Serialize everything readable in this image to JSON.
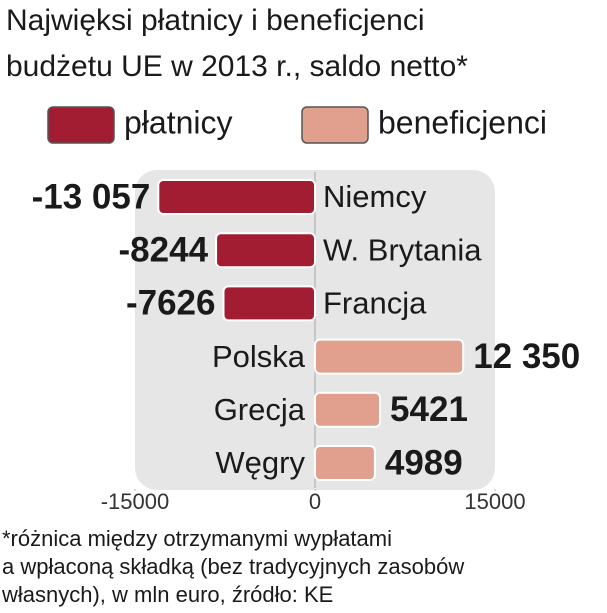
{
  "chart_data": {
    "type": "bar",
    "orientation": "horizontal",
    "title": [
      "Najwięksi płatnicy i beneficjenci",
      "budżetu UE w 2013 r., saldo netto*"
    ],
    "categories": [
      "Niemcy",
      "W. Brytania",
      "Francja",
      "Polska",
      "Grecja",
      "Węgry"
    ],
    "series": [
      {
        "name": "płatnicy",
        "color": "#a31d32",
        "values": [
          -13057,
          -8244,
          -7626,
          null,
          null,
          null
        ],
        "value_labels": [
          "-13 057",
          "-8244",
          "-7626",
          null,
          null,
          null
        ]
      },
      {
        "name": "beneficjenci",
        "color": "#e0a08d",
        "values": [
          null,
          null,
          null,
          12350,
          5421,
          4989
        ],
        "value_labels": [
          null,
          null,
          null,
          "12 350",
          "5421",
          "4989"
        ]
      }
    ],
    "xlim": [
      -15000,
      15000
    ],
    "xticks": [
      -15000,
      0,
      15000
    ],
    "footnote": [
      "*różnica między otrzymanymi wypłatami",
      "a wpłaconą składką (bez tradycyjnych zasobów",
      "własnych), w mln euro, źródło: KE"
    ]
  }
}
